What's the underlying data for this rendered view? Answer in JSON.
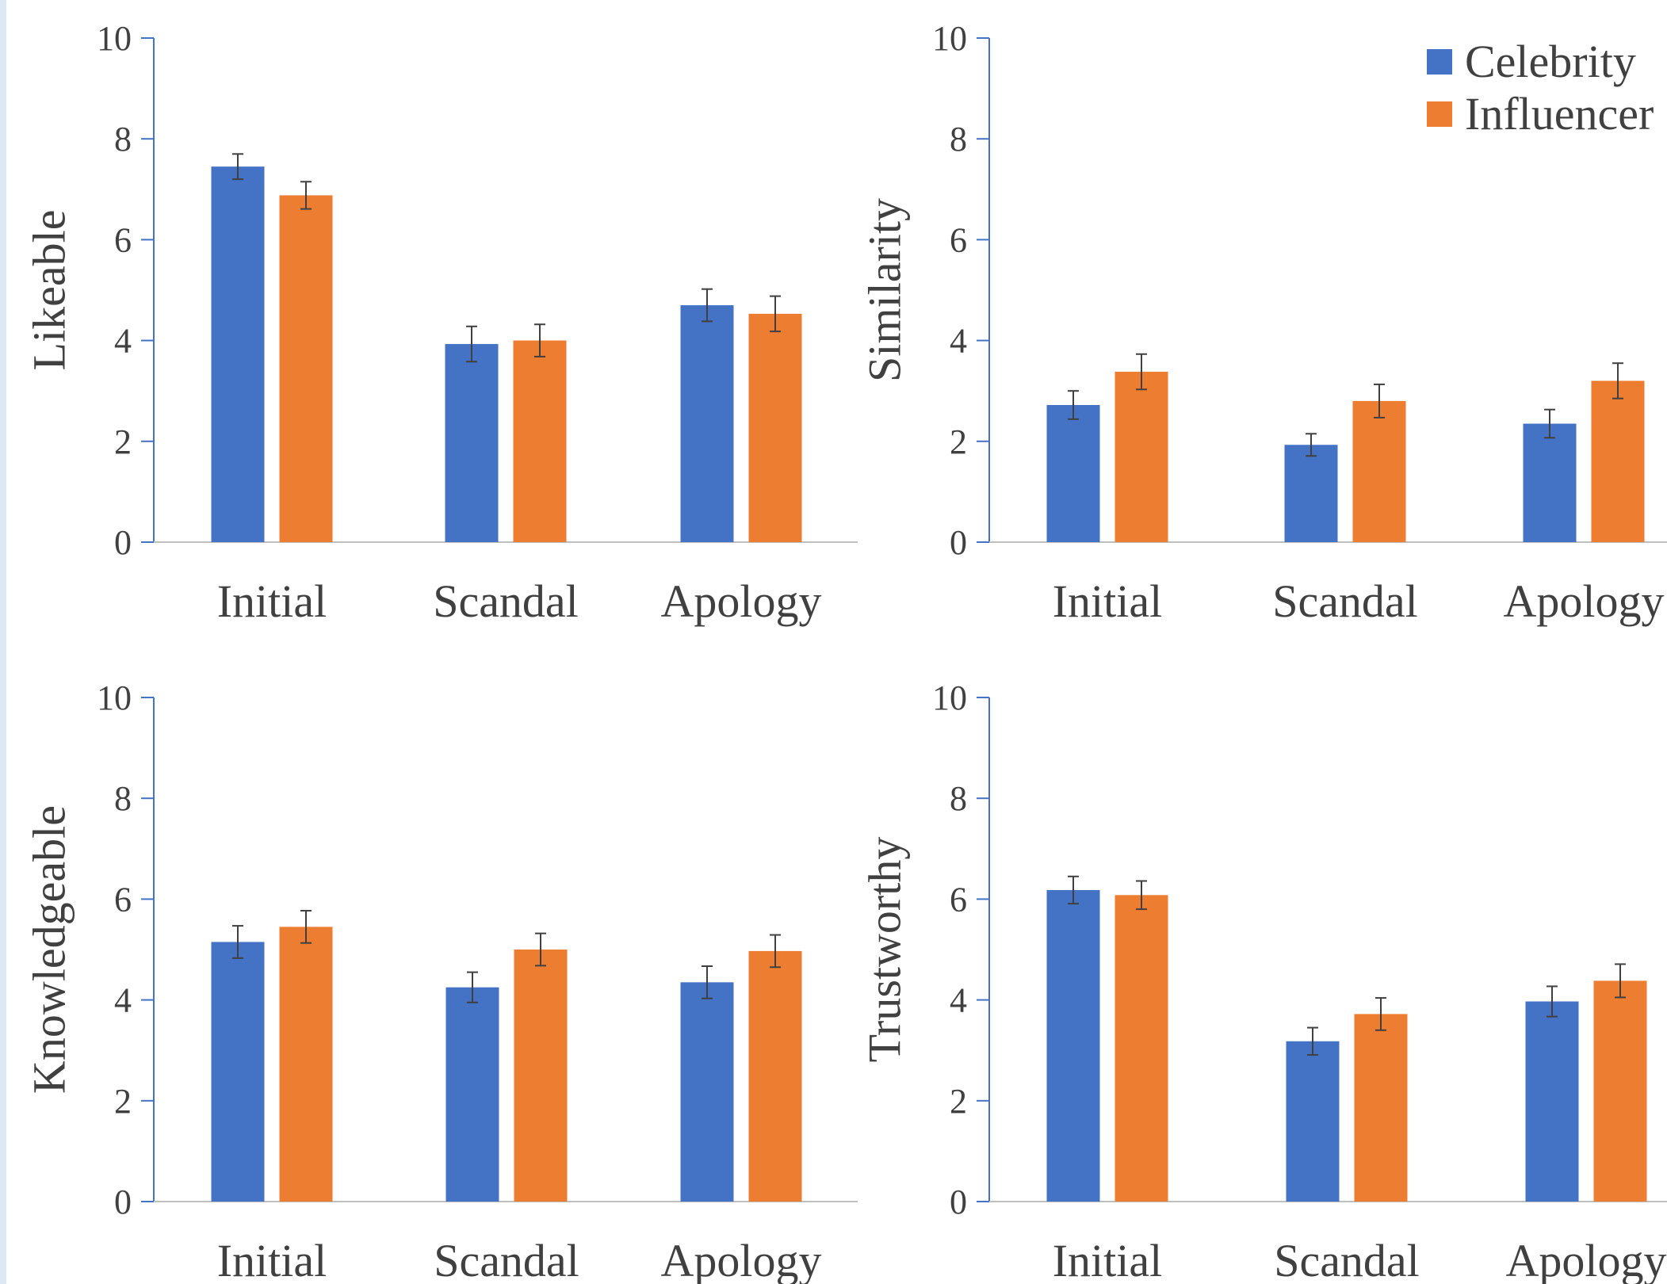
{
  "colors": {
    "celebrity": "#4472C4",
    "influencer": "#ED7D31",
    "axis": "#4472C4",
    "baseline": "#BFBFBF",
    "text": "#404040",
    "errorbar": "#404040"
  },
  "legend": {
    "placement": "top-right",
    "items": [
      {
        "label": "Celebrity",
        "color": "#4472C4"
      },
      {
        "label": "Influencer",
        "color": "#ED7D31"
      }
    ]
  },
  "chart_data": [
    {
      "type": "bar",
      "ylabel": "Likeable",
      "ylim": [
        0,
        10
      ],
      "yticks": [
        "0",
        "2",
        "4",
        "6",
        "8",
        "10"
      ],
      "categories": [
        "Initial",
        "Scandal",
        "Apology"
      ],
      "series": [
        {
          "name": "Celebrity",
          "values": [
            7.45,
            3.93,
            4.7
          ],
          "errors": [
            0.25,
            0.35,
            0.32
          ]
        },
        {
          "name": "Influencer",
          "values": [
            6.88,
            4.0,
            4.53
          ],
          "errors": [
            0.27,
            0.32,
            0.35
          ]
        }
      ]
    },
    {
      "type": "bar",
      "ylabel": "Similarity",
      "ylim": [
        0,
        10
      ],
      "yticks": [
        "0",
        "2",
        "4",
        "6",
        "8",
        "10"
      ],
      "categories": [
        "Initial",
        "Scandal",
        "Apology"
      ],
      "series": [
        {
          "name": "Celebrity",
          "values": [
            2.72,
            1.93,
            2.35
          ],
          "errors": [
            0.28,
            0.22,
            0.28
          ]
        },
        {
          "name": "Influencer",
          "values": [
            3.38,
            2.8,
            3.2
          ],
          "errors": [
            0.35,
            0.33,
            0.35
          ]
        }
      ]
    },
    {
      "type": "bar",
      "ylabel": "Knowledgeable",
      "ylim": [
        0,
        10
      ],
      "yticks": [
        "0",
        "2",
        "4",
        "6",
        "8",
        "10"
      ],
      "categories": [
        "Initial",
        "Scandal",
        "Apology"
      ],
      "series": [
        {
          "name": "Celebrity",
          "values": [
            5.15,
            4.25,
            4.35
          ],
          "errors": [
            0.32,
            0.3,
            0.32
          ]
        },
        {
          "name": "Influencer",
          "values": [
            5.45,
            5.0,
            4.97
          ],
          "errors": [
            0.32,
            0.32,
            0.32
          ]
        }
      ]
    },
    {
      "type": "bar",
      "ylabel": "Trustworthy",
      "ylim": [
        0,
        10
      ],
      "yticks": [
        "0",
        "2",
        "4",
        "6",
        "8",
        "10"
      ],
      "categories": [
        "Initial",
        "Scandal",
        "Apology"
      ],
      "series": [
        {
          "name": "Celebrity",
          "values": [
            6.18,
            3.18,
            3.97
          ],
          "errors": [
            0.27,
            0.27,
            0.3
          ]
        },
        {
          "name": "Influencer",
          "values": [
            6.08,
            3.72,
            4.38
          ],
          "errors": [
            0.28,
            0.32,
            0.33
          ]
        }
      ]
    }
  ]
}
